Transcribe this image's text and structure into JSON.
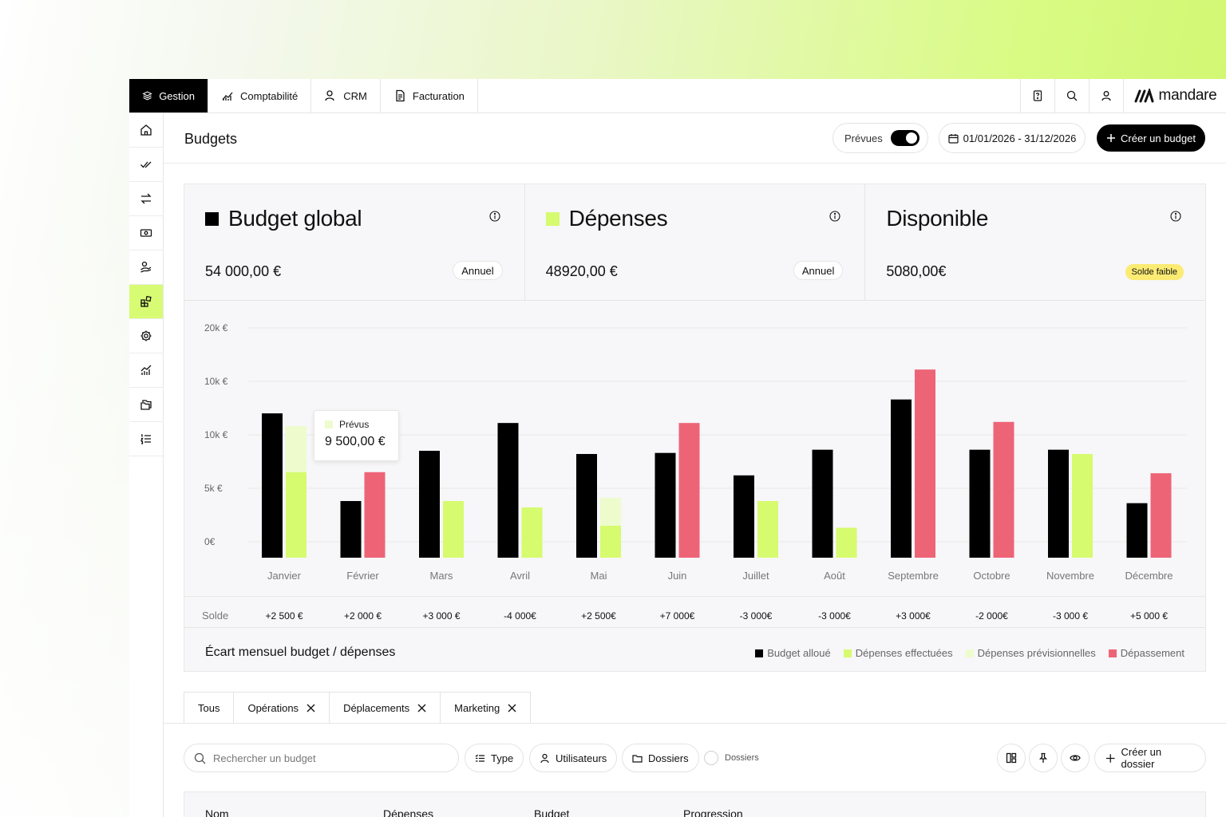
{
  "topnav": {
    "tabs": [
      {
        "label": "Gestion",
        "icon": "layers-icon",
        "active": true
      },
      {
        "label": "Comptabilité",
        "icon": "chart-icon"
      },
      {
        "label": "CRM",
        "icon": "user-icon"
      },
      {
        "label": "Facturation",
        "icon": "document-icon"
      }
    ],
    "brand": "mandare"
  },
  "header": {
    "title": "Budgets",
    "toggle_label": "Prévues",
    "date_range": "01/01/2026 - 31/12/2026",
    "create_label": "Créer un budget"
  },
  "cards": [
    {
      "title": "Budget global",
      "value": "54 000,00 €",
      "badge": "Annuel",
      "swatch": "#000000"
    },
    {
      "title": "Dépenses",
      "value": "48920,00 €",
      "badge": "Annuel",
      "swatch": "#d6fb6f"
    },
    {
      "title": "Disponible",
      "value": "5080,00€",
      "badge": "Solde faible"
    }
  ],
  "tooltip": {
    "label": "Prévus",
    "value": "9 500,00 €"
  },
  "chart_data": {
    "type": "bar",
    "title": "Écart mensuel budget / dépenses",
    "yticks": [
      "20k €",
      "10k €",
      "10k €",
      "5k €",
      "0€"
    ],
    "ylim": [
      0,
      20000
    ],
    "categories": [
      "Janvier",
      "Février",
      "Mars",
      "Avril",
      "Mai",
      "Juin",
      "Juillet",
      "Août",
      "Septembre",
      "Octobre",
      "Novembre",
      "Décembre"
    ],
    "series": [
      {
        "name": "Budget alloué",
        "color": "#000000",
        "values": [
          13500,
          5300,
          10000,
          12600,
          9700,
          9800,
          7700,
          10100,
          14800,
          10100,
          10100,
          5100
        ]
      },
      {
        "name": "Dépenses effectuées",
        "color": "#d6fb6f",
        "values": [
          8000,
          0,
          5300,
          4700,
          3000,
          0,
          5300,
          2800,
          0,
          0,
          9700,
          0
        ]
      },
      {
        "name": "Dépenses prévisionnelles",
        "color": "#eefccd",
        "values": [
          4300,
          0,
          0,
          0,
          2600,
          0,
          0,
          0,
          0,
          0,
          0,
          0
        ]
      },
      {
        "name": "Dépassement",
        "color": "#ee6477",
        "values": [
          0,
          8000,
          0,
          0,
          0,
          12600,
          0,
          0,
          17600,
          12700,
          0,
          7900
        ]
      }
    ],
    "solde_label": "Solde",
    "solde": [
      "+2 500 €",
      "+2 000 €",
      "+3 000 €",
      "-4 000€",
      "+2 500€",
      "+7 000€",
      "-3 000€",
      "-3 000€",
      "+3 000€",
      "-2 000€",
      "-3 000 €",
      "+5 000 €"
    ],
    "legend": [
      {
        "label": "Budget alloué",
        "color": "#000000"
      },
      {
        "label": "Dépenses effectuées",
        "color": "#d6fb6f"
      },
      {
        "label": "Dépenses prévisionnelles",
        "color": "#eefccd"
      },
      {
        "label": "Dépassement",
        "color": "#ee6477"
      }
    ]
  },
  "filters": {
    "tabs": [
      "Tous",
      "Opérations",
      "Déplacements",
      "Marketing"
    ]
  },
  "toolbar": {
    "search_placeholder": "Rechercher un budget",
    "type_label": "Type",
    "users_label": "Utilisateurs",
    "folders_label": "Dossiers",
    "radio_label": "Dossiers",
    "create_folder_label": "Créer un dossier"
  },
  "table": {
    "columns": [
      "Nom",
      "Dépenses",
      "Budget",
      "Progression"
    ]
  }
}
